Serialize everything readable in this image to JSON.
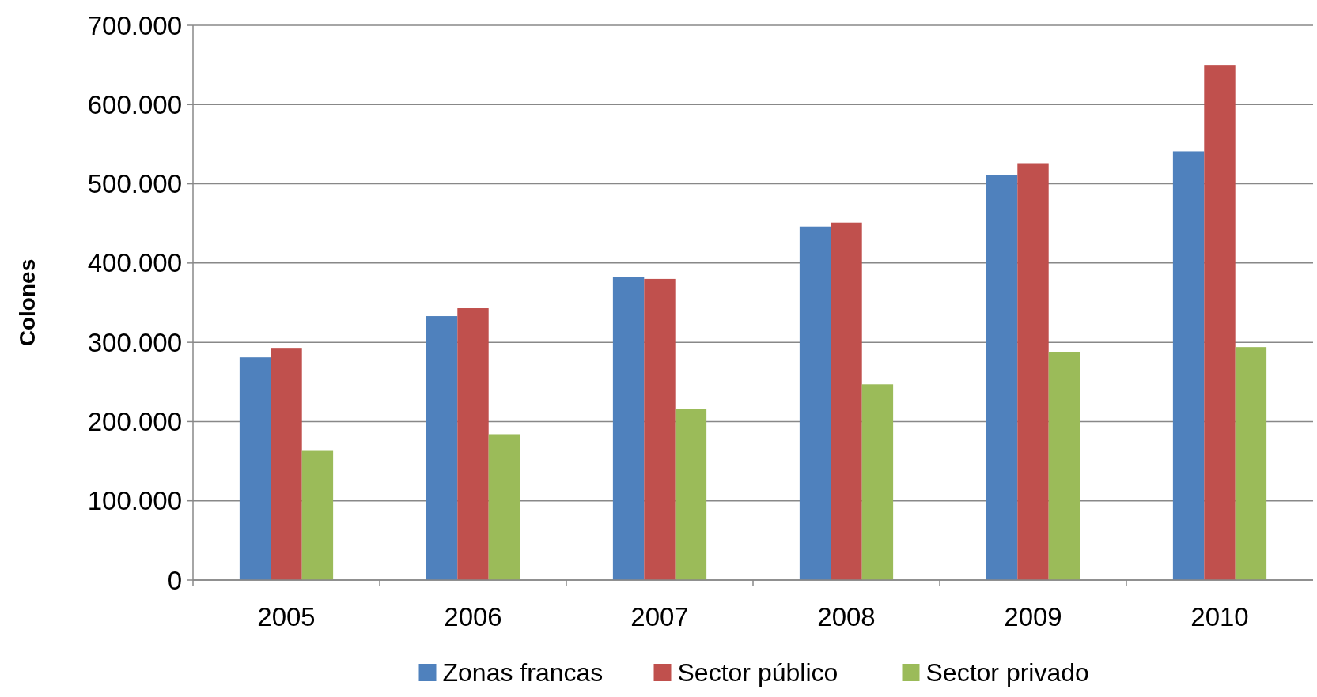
{
  "chart_data": {
    "type": "bar",
    "ylabel": "Colones",
    "categories": [
      "2005",
      "2006",
      "2007",
      "2008",
      "2009",
      "2010"
    ],
    "series": [
      {
        "name": "Zonas francas",
        "color": "#4f81bd",
        "values": [
          281000,
          333000,
          382000,
          446000,
          511000,
          541000
        ]
      },
      {
        "name": "Sector público",
        "color": "#c0504d",
        "values": [
          293000,
          343000,
          380000,
          451000,
          526000,
          650000
        ]
      },
      {
        "name": "Sector privado",
        "color": "#9bbb59",
        "values": [
          163000,
          184000,
          216000,
          247000,
          288000,
          294000
        ]
      }
    ],
    "ylim": [
      0,
      700000
    ],
    "yticks": [
      0,
      {
        "value": 100000,
        "label": "100.000"
      },
      {
        "value": 200000,
        "label": "200.000"
      },
      {
        "value": 300000,
        "label": "300.000"
      },
      {
        "value": 400000,
        "label": "400.000"
      },
      {
        "value": 500000,
        "label": "500.000"
      },
      {
        "value": 600000,
        "label": "600.000"
      },
      {
        "value": 700000,
        "label": "700.000"
      }
    ],
    "grid": "y",
    "legend": "bottom"
  }
}
